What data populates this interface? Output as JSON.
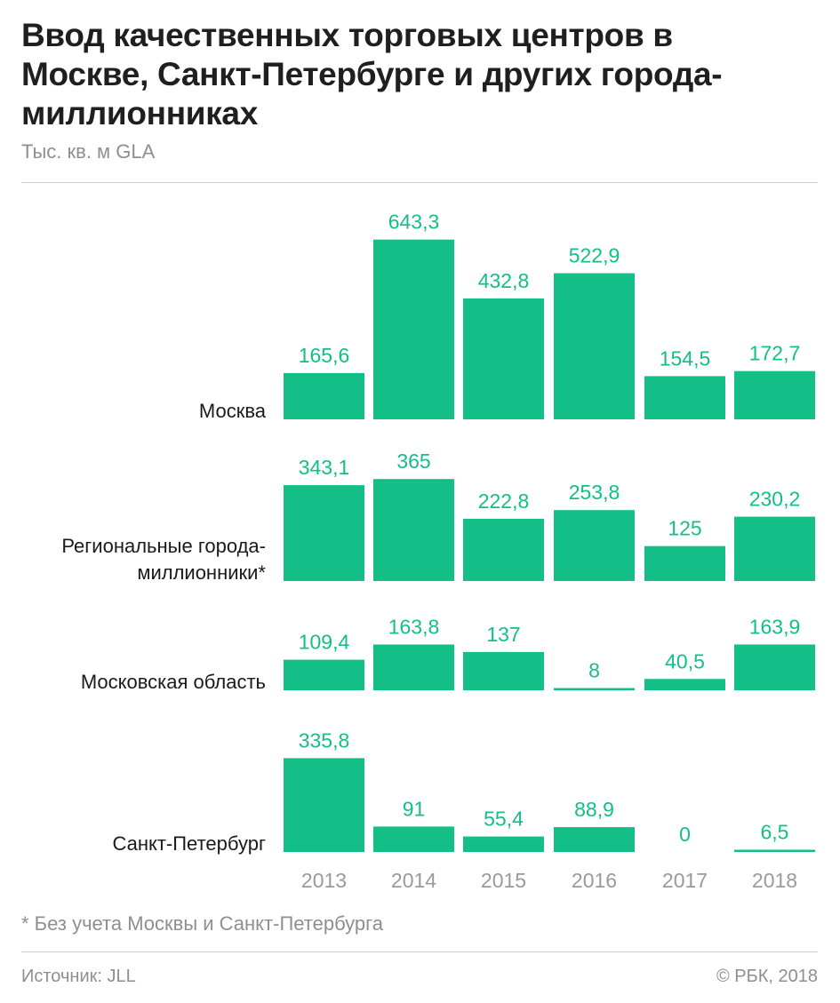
{
  "title": "Ввод качественных торговых центров в Москве, Санкт-Петербурге и других города-миллионниках",
  "subtitle": "Тыс. кв. м GLA",
  "footnote": "* Без учета Москвы и Санкт-Петербурга",
  "source": "Источник: JLL",
  "copyright": "© РБК, 2018",
  "colors": {
    "bar": "#13bf87",
    "value_label": "#13bf87",
    "year_label": "#9a9a9a",
    "group_label": "#1a1a1a"
  },
  "chart_data": {
    "type": "bar",
    "categories": [
      "2013",
      "2014",
      "2015",
      "2016",
      "2017",
      "2018"
    ],
    "series": [
      {
        "name": "Москва",
        "label_lines": [
          "Москва"
        ],
        "values": [
          165.6,
          643.3,
          432.8,
          522.9,
          154.5,
          172.7
        ],
        "labels": [
          "165,6",
          "643,3",
          "432,8",
          "522,9",
          "154,5",
          "172,7"
        ]
      },
      {
        "name": "Региональные города-миллионники*",
        "label_lines": [
          "Региональные города-",
          "миллионники*"
        ],
        "values": [
          343.1,
          365,
          222.8,
          253.8,
          125,
          230.2
        ],
        "labels": [
          "343,1",
          "365",
          "222,8",
          "253,8",
          "125",
          "230,2"
        ]
      },
      {
        "name": "Московская область",
        "label_lines": [
          "Московская область"
        ],
        "values": [
          109.4,
          163.8,
          137,
          8,
          40.5,
          163.9
        ],
        "labels": [
          "109,4",
          "163,8",
          "137",
          "8",
          "40,5",
          "163,9"
        ]
      },
      {
        "name": "Санкт-Петербург",
        "label_lines": [
          "Санкт-Петербург"
        ],
        "values": [
          335.8,
          91,
          55.4,
          88.9,
          0,
          6.5
        ],
        "labels": [
          "335,8",
          "91",
          "55,4",
          "88,9",
          "0",
          "6,5"
        ]
      }
    ],
    "legend": "none",
    "grid": false
  }
}
